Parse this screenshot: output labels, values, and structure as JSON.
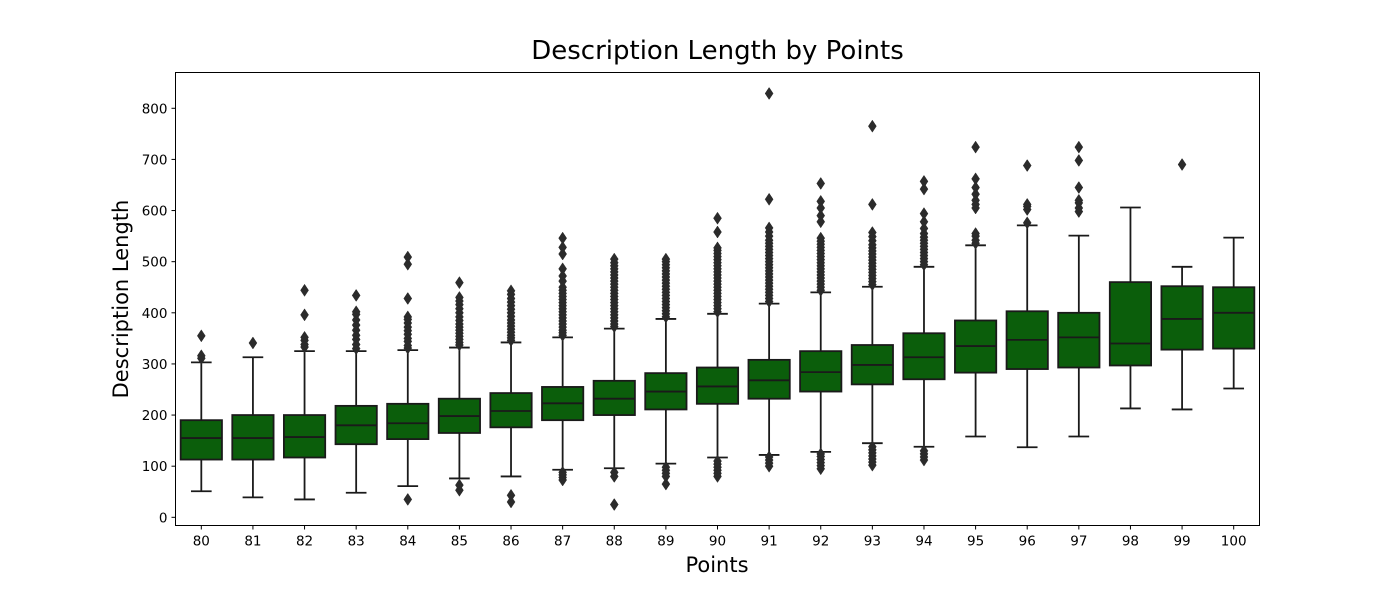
{
  "chart_data": {
    "type": "box",
    "title": "Description Length by Points",
    "xlabel": "Points",
    "ylabel": "Description Length",
    "ylim": [
      -16,
      870
    ],
    "yticks": [
      0,
      100,
      200,
      300,
      400,
      500,
      600,
      700,
      800
    ],
    "grid": false,
    "box_color": "#0b5e0b",
    "edge_color": "#1a1a1a",
    "categories": [
      "80",
      "81",
      "82",
      "83",
      "84",
      "85",
      "86",
      "87",
      "88",
      "89",
      "90",
      "91",
      "92",
      "93",
      "94",
      "95",
      "96",
      "97",
      "98",
      "99",
      "100"
    ],
    "boxes": [
      {
        "q1": 113,
        "median": 155,
        "q3": 190,
        "whisker_low": 51,
        "whisker_high": 303,
        "outliers": [
          311,
          316,
          355
        ]
      },
      {
        "q1": 113,
        "median": 155,
        "q3": 200,
        "whisker_low": 39,
        "whisker_high": 313,
        "outliers": [
          341
        ]
      },
      {
        "q1": 117,
        "median": 157,
        "q3": 200,
        "whisker_low": 35,
        "whisker_high": 325,
        "outliers": [
          333,
          338,
          346,
          352,
          396,
          444
        ]
      },
      {
        "q1": 143,
        "median": 180,
        "q3": 218,
        "whisker_low": 48,
        "whisker_high": 325,
        "outliers": [
          330,
          338,
          348,
          356,
          366,
          376,
          386,
          397,
          402,
          434
        ]
      },
      {
        "q1": 153,
        "median": 184,
        "q3": 222,
        "whisker_low": 61,
        "whisker_high": 327,
        "outliers": [
          35,
          331,
          336,
          344,
          350,
          358,
          365,
          372,
          380,
          387,
          392,
          428,
          495,
          509
        ]
      },
      {
        "q1": 165,
        "median": 198,
        "q3": 232,
        "whisker_low": 76,
        "whisker_high": 332,
        "outliers": [
          53,
          63,
          337,
          342,
          348,
          354,
          360,
          366,
          372,
          378,
          385,
          392,
          400,
          408,
          416,
          423,
          430,
          459
        ]
      },
      {
        "q1": 176,
        "median": 208,
        "q3": 243,
        "whisker_low": 80,
        "whisker_high": 342,
        "outliers": [
          30,
          43,
          346,
          351,
          356,
          362,
          368,
          374,
          380,
          386,
          393,
          400,
          407,
          414,
          421,
          428,
          436,
          443
        ]
      },
      {
        "q1": 190,
        "median": 223,
        "q3": 255,
        "whisker_low": 93,
        "whisker_high": 352,
        "outliers": [
          73,
          78,
          83,
          88,
          356,
          361,
          366,
          372,
          378,
          384,
          390,
          396,
          402,
          408,
          414,
          420,
          426,
          432,
          438,
          444,
          450,
          462,
          472,
          486,
          515,
          528,
          546
        ]
      },
      {
        "q1": 200,
        "median": 232,
        "q3": 267,
        "whisker_low": 96,
        "whisker_high": 369,
        "outliers": [
          25,
          80,
          88,
          373,
          378,
          384,
          390,
          396,
          402,
          408,
          414,
          420,
          426,
          432,
          438,
          444,
          450,
          456,
          462,
          468,
          474,
          480,
          486,
          492,
          498,
          505
        ]
      },
      {
        "q1": 211,
        "median": 246,
        "q3": 282,
        "whisker_low": 105,
        "whisker_high": 388,
        "outliers": [
          65,
          80,
          86,
          92,
          98,
          392,
          398,
          404,
          410,
          416,
          422,
          428,
          434,
          440,
          446,
          452,
          458,
          464,
          470,
          476,
          482,
          488,
          494,
          500,
          505
        ]
      },
      {
        "q1": 222,
        "median": 256,
        "q3": 293,
        "whisker_low": 117,
        "whisker_high": 398,
        "outliers": [
          80,
          86,
          92,
          98,
          104,
          110,
          402,
          408,
          414,
          420,
          426,
          432,
          438,
          444,
          450,
          456,
          462,
          468,
          474,
          480,
          486,
          492,
          498,
          504,
          510,
          516,
          522,
          527,
          558,
          585
        ]
      },
      {
        "q1": 232,
        "median": 268,
        "q3": 308,
        "whisker_low": 122,
        "whisker_high": 418,
        "outliers": [
          100,
          106,
          112,
          118,
          422,
          428,
          434,
          440,
          446,
          452,
          458,
          464,
          470,
          476,
          482,
          488,
          494,
          500,
          506,
          512,
          518,
          524,
          530,
          536,
          542,
          550,
          558,
          566,
          622,
          829
        ]
      },
      {
        "q1": 246,
        "median": 284,
        "q3": 325,
        "whisker_low": 128,
        "whisker_high": 440,
        "outliers": [
          95,
          101,
          107,
          113,
          119,
          124,
          444,
          450,
          456,
          462,
          468,
          474,
          480,
          486,
          492,
          498,
          504,
          510,
          516,
          522,
          528,
          534,
          540,
          546,
          578,
          590,
          605,
          618,
          653
        ]
      },
      {
        "q1": 260,
        "median": 298,
        "q3": 337,
        "whisker_low": 145,
        "whisker_high": 451,
        "outliers": [
          102,
          108,
          114,
          120,
          126,
          132,
          138,
          455,
          461,
          467,
          473,
          479,
          485,
          491,
          497,
          503,
          509,
          515,
          521,
          527,
          533,
          541,
          549,
          557,
          612,
          765
        ]
      },
      {
        "q1": 270,
        "median": 313,
        "q3": 360,
        "whisker_low": 138,
        "whisker_high": 490,
        "outliers": [
          112,
          118,
          124,
          130,
          494,
          500,
          506,
          512,
          518,
          524,
          530,
          536,
          542,
          548,
          555,
          565,
          578,
          594,
          642,
          657
        ]
      },
      {
        "q1": 283,
        "median": 335,
        "q3": 385,
        "whisker_low": 158,
        "whisker_high": 532,
        "outliers": [
          536,
          542,
          550,
          555,
          605,
          612,
          620,
          632,
          645,
          662,
          724
        ]
      },
      {
        "q1": 290,
        "median": 347,
        "q3": 403,
        "whisker_low": 137,
        "whisker_high": 571,
        "outliers": [
          576,
          602,
          608,
          612,
          688
        ]
      },
      {
        "q1": 293,
        "median": 352,
        "q3": 400,
        "whisker_low": 158,
        "whisker_high": 551,
        "outliers": [
          598,
          605,
          615,
          620,
          645,
          698,
          724
        ]
      },
      {
        "q1": 297,
        "median": 340,
        "q3": 460,
        "whisker_low": 213,
        "whisker_high": 606,
        "outliers": []
      },
      {
        "q1": 328,
        "median": 388,
        "q3": 452,
        "whisker_low": 211,
        "whisker_high": 490,
        "outliers": [
          690
        ]
      },
      {
        "q1": 330,
        "median": 400,
        "q3": 450,
        "whisker_low": 252,
        "whisker_high": 547,
        "outliers": []
      }
    ]
  }
}
